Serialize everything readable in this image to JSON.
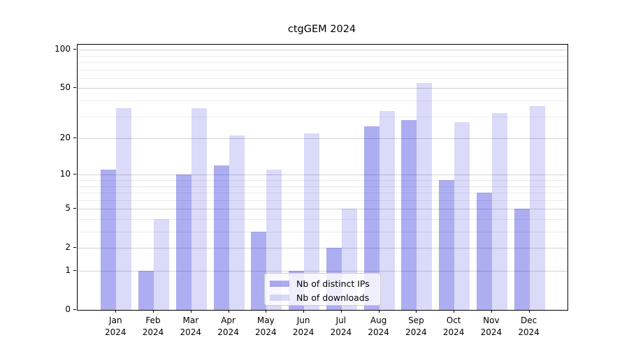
{
  "title": "ctgGEM 2024",
  "chart_data": {
    "type": "bar",
    "title": "ctgGEM 2024",
    "categories": [
      "Jan",
      "Feb",
      "Mar",
      "Apr",
      "May",
      "Jun",
      "Jul",
      "Aug",
      "Sep",
      "Oct",
      "Nov",
      "Dec"
    ],
    "category_year": "2024",
    "series": [
      {
        "name": "Nb of distinct IPs",
        "color": "#0808d655",
        "color_on_white": "#abacef",
        "values": [
          11,
          1,
          10,
          12,
          3,
          1,
          2,
          25,
          28,
          9,
          7,
          5
        ]
      },
      {
        "name": "Nb of downloads",
        "color": "#0808d626",
        "color_on_white": "#dadbf9",
        "values": [
          35,
          4,
          35,
          21,
          11,
          22,
          5,
          33,
          55,
          27,
          32,
          36
        ]
      }
    ],
    "xlabel": "",
    "ylabel": "",
    "yscale": "log1p",
    "ylim": [
      0,
      110
    ],
    "yticks": [
      0,
      1,
      2,
      5,
      10,
      20,
      50,
      100
    ],
    "yticks_minor": [
      3,
      4,
      6,
      7,
      8,
      9,
      30,
      40,
      60,
      70,
      80,
      90
    ],
    "grid": true,
    "legend_position": "lower-center",
    "style": {
      "major_grid_color": "#d2d2d2",
      "minor_grid_color": "#ebebeb",
      "axis_color": "#000000",
      "background": "#ffffff"
    }
  }
}
